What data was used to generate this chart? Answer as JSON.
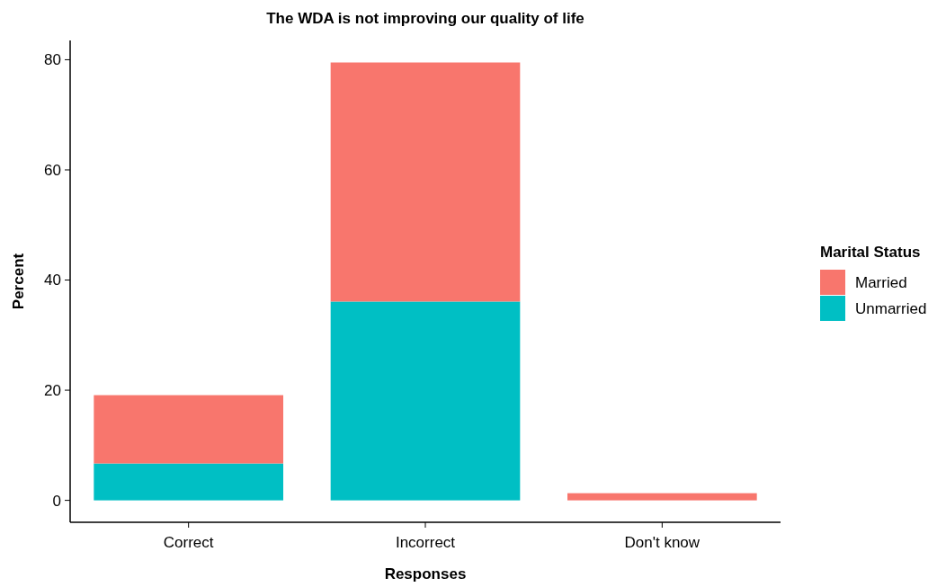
{
  "chart_data": {
    "type": "bar",
    "title": "The WDA is not improving our quality of life",
    "xlabel": "Responses",
    "ylabel": "Percent",
    "legend_title": "Marital Status",
    "categories": [
      "Correct",
      "Incorrect",
      "Don't know"
    ],
    "stacked": true,
    "legend": "right",
    "ylim": [
      -3.98,
      83.5
    ],
    "yticks": [
      0,
      20,
      40,
      60,
      80
    ],
    "series": [
      {
        "name": "Unmarried",
        "color": "#00bfc4",
        "values": [
          6.7,
          36.1,
          0
        ]
      },
      {
        "name": "Married",
        "color": "#f8766d",
        "values": [
          12.4,
          43.4,
          1.3
        ]
      }
    ]
  }
}
